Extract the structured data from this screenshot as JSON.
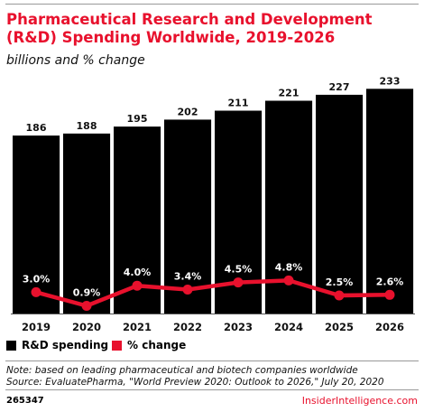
{
  "title": "Pharmaceutical Research and Development (R&D) Spending Worldwide, 2019-2026",
  "subtitle": "billions and % change",
  "colors": {
    "accent": "#e8112d",
    "bars": "#000000"
  },
  "chart_data": {
    "type": "bar",
    "categories": [
      "2019",
      "2020",
      "2021",
      "2022",
      "2023",
      "2024",
      "2025",
      "2026"
    ],
    "series": [
      {
        "name": "R&D spending",
        "type": "bar",
        "values": [
          186,
          188,
          195,
          202,
          211,
          221,
          227,
          233
        ],
        "labels": [
          "186",
          "188",
          "195",
          "202",
          "211",
          "221",
          "227",
          "233"
        ],
        "color": "#000000"
      },
      {
        "name": "% change",
        "type": "line",
        "values": [
          3.0,
          0.9,
          4.0,
          3.4,
          4.5,
          4.8,
          2.5,
          2.6
        ],
        "labels": [
          "3.0%",
          "0.9%",
          "4.0%",
          "3.4%",
          "4.5%",
          "4.8%",
          "2.5%",
          "2.6%"
        ],
        "color": "#e8112d"
      }
    ],
    "legend": {
      "position": "bottom-left",
      "items": [
        "R&D spending",
        "% change"
      ]
    }
  },
  "footer": {
    "note": "Note: based on leading pharmaceutical and biotech companies worldwide",
    "source": "Source: EvaluatePharma, \"World Preview 2020: Outlook to 2026,\" July 20, 2020",
    "code": "265347",
    "brand": "InsiderIntelligence.com"
  }
}
